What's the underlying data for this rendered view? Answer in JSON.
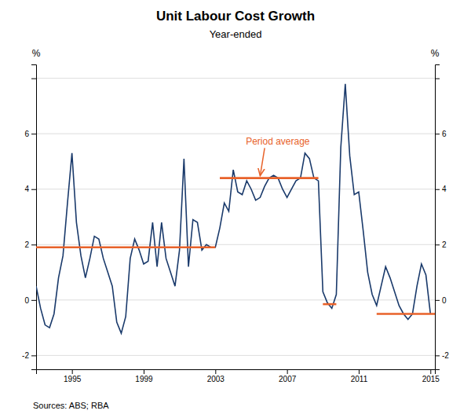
{
  "chart_data": {
    "type": "line",
    "title": "Unit Labour Cost Growth",
    "subtitle": "Year-ended",
    "source": "Sources:  ABS; RBA",
    "ylabel": "%",
    "y2label": "%",
    "x": [
      1993.0,
      1993.25,
      1993.5,
      1993.75,
      1994.0,
      1994.25,
      1994.5,
      1994.75,
      1995.0,
      1995.25,
      1995.5,
      1995.75,
      1996.0,
      1996.25,
      1996.5,
      1996.75,
      1997.0,
      1997.25,
      1997.5,
      1997.75,
      1998.0,
      1998.25,
      1998.5,
      1998.75,
      1999.0,
      1999.25,
      1999.5,
      1999.75,
      2000.0,
      2000.25,
      2000.5,
      2000.75,
      2001.0,
      2001.25,
      2001.5,
      2001.75,
      2002.0,
      2002.25,
      2002.5,
      2002.75,
      2003.0,
      2003.25,
      2003.5,
      2003.75,
      2004.0,
      2004.25,
      2004.5,
      2004.75,
      2005.0,
      2005.25,
      2005.5,
      2005.75,
      2006.0,
      2006.25,
      2006.5,
      2006.75,
      2007.0,
      2007.25,
      2007.5,
      2007.75,
      2008.0,
      2008.25,
      2008.5,
      2008.75,
      2009.0,
      2009.25,
      2009.5,
      2009.75,
      2010.0,
      2010.25,
      2010.5,
      2010.75,
      2011.0,
      2011.25,
      2011.5,
      2011.75,
      2012.0,
      2012.25,
      2012.5,
      2012.75,
      2013.0,
      2013.25,
      2013.5,
      2013.75,
      2014.0,
      2014.25,
      2014.5,
      2014.75,
      2015.0
    ],
    "series": [
      {
        "color": "#1a3a6b",
        "values": [
          0.5,
          -0.3,
          -0.9,
          -1.0,
          -0.5,
          0.8,
          1.6,
          3.5,
          5.3,
          2.8,
          1.6,
          0.8,
          1.5,
          2.3,
          2.2,
          1.5,
          1.0,
          0.5,
          -0.8,
          -1.2,
          -0.6,
          1.5,
          2.2,
          1.8,
          1.3,
          1.4,
          2.8,
          1.2,
          2.8,
          1.5,
          1.0,
          0.5,
          1.8,
          5.1,
          1.2,
          2.9,
          2.8,
          1.8,
          2.0,
          1.9,
          1.9,
          2.6,
          3.5,
          3.2,
          4.7,
          3.9,
          3.8,
          4.3,
          4.0,
          3.6,
          3.7,
          4.1,
          4.4,
          4.5,
          4.4,
          4.0,
          3.7,
          4.0,
          4.3,
          4.4,
          5.3,
          5.1,
          4.4,
          4.3,
          0.3,
          -0.1,
          -0.3,
          0.2,
          5.5,
          7.8,
          5.2,
          3.8,
          3.9,
          2.5,
          1.0,
          0.2,
          -0.2,
          0.5,
          1.2,
          0.8,
          0.3,
          -0.2,
          -0.5,
          -0.7,
          -0.5,
          0.5,
          1.3,
          0.9,
          -0.5
        ]
      }
    ],
    "averages": {
      "color": "#e8622a",
      "segments": [
        {
          "x_start": 1993.0,
          "x_end": 2003.0,
          "value": 1.9
        },
        {
          "x_start": 2003.25,
          "x_end": 2008.75,
          "value": 4.4
        },
        {
          "x_start": 2009.0,
          "x_end": 2009.75,
          "value": -0.15
        },
        {
          "x_start": 2012.0,
          "x_end": 2015.25,
          "value": -0.5
        }
      ]
    },
    "annotation": {
      "text": "Period average",
      "x": 2005.5,
      "y": 4.4,
      "text_x": 2004.7,
      "text_y": 5.6,
      "color": "#e8622a"
    },
    "xlim": [
      1993.0,
      2015.25
    ],
    "xticks": [
      1995,
      1999,
      2003,
      2007,
      2011,
      2015
    ],
    "ylim": [
      -2.5,
      8.5
    ],
    "yticks": [
      -2,
      0,
      2,
      4,
      6,
      {
        "value": 8,
        "label": null
      }
    ],
    "y2lim": [
      -2.5,
      8.5
    ],
    "y2ticks": [
      -2,
      0,
      2,
      4,
      6,
      {
        "value": 8,
        "label": null
      }
    ],
    "grid": true
  }
}
